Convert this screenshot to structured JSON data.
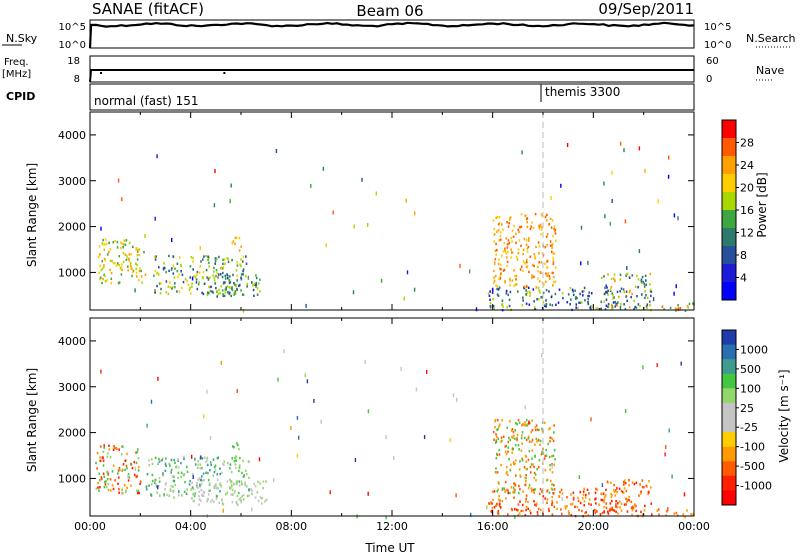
{
  "header": {
    "station": "SANAE (fitACF)",
    "beam": "Beam 06",
    "date": "09/Sep/2011"
  },
  "status_panels": {
    "nsky_label": "N.Sky",
    "nsearch_label": "N.Search",
    "nsky_ticks": [
      "10^5",
      "10^0"
    ],
    "nsearch_ticks": [
      "10^5",
      "10^0"
    ],
    "freq_label_1": "Freq.",
    "freq_label_2": "[MHz]",
    "freq_ticks": [
      "18",
      "8"
    ],
    "nave_label": "Nave",
    "nave_ticks": [
      "60",
      "0"
    ],
    "cpid_label": "CPID",
    "cpid_programs": [
      {
        "name": "normal (fast) 151",
        "start_hour": 0
      },
      {
        "name": "themis 3300",
        "start_hour": 18
      }
    ]
  },
  "chart_data": [
    {
      "type": "heatmap",
      "name": "power",
      "ylabel": "Slant Range [km]",
      "ylim": [
        180,
        4500
      ],
      "yticks": [
        1000,
        2000,
        3000,
        4000
      ],
      "xlim": [
        0,
        24
      ],
      "colorbar": {
        "label": "Power [dB]",
        "ticks": [
          "28",
          "24",
          "20",
          "16",
          "12",
          "8",
          "4"
        ],
        "colors": [
          "#ff0000",
          "#ff5a00",
          "#ffa000",
          "#ffcc00",
          "#a8d800",
          "#3fa73f",
          "#2d7a6c",
          "#264f9c",
          "#1b1bd8",
          "#0000ff"
        ]
      },
      "blobs": [
        {
          "t0": 0.3,
          "t1": 2.2,
          "r0": 750,
          "r1": 1750,
          "levels": [
            2,
            3,
            4,
            5
          ]
        },
        {
          "t0": 2.5,
          "t1": 6.2,
          "r0": 550,
          "r1": 1400,
          "levels": [
            3,
            4,
            5,
            6,
            7
          ]
        },
        {
          "t0": 4.5,
          "t1": 6.8,
          "r0": 500,
          "r1": 1000,
          "levels": [
            4,
            5,
            6,
            7
          ]
        },
        {
          "t0": 5.6,
          "t1": 6.1,
          "r0": 1500,
          "r1": 1800,
          "levels": [
            2,
            3
          ]
        },
        {
          "t0": 15.8,
          "t1": 21.0,
          "r0": 200,
          "r1": 700,
          "levels": [
            4,
            6,
            7,
            8
          ]
        },
        {
          "t0": 16.0,
          "t1": 18.5,
          "r0": 700,
          "r1": 2300,
          "levels": [
            1,
            2,
            3
          ]
        },
        {
          "t0": 20.3,
          "t1": 22.3,
          "r0": 200,
          "r1": 1000,
          "levels": [
            2,
            4,
            6,
            7
          ]
        },
        {
          "t0": 22.5,
          "t1": 24.0,
          "r0": 180,
          "r1": 350,
          "levels": [
            1,
            2,
            5
          ]
        }
      ]
    },
    {
      "type": "heatmap",
      "name": "velocity",
      "ylabel": "Slant Range [km]",
      "xlabel": "Time UT",
      "ylim": [
        180,
        4500
      ],
      "yticks": [
        1000,
        2000,
        3000,
        4000
      ],
      "xlim": [
        0,
        24
      ],
      "xticks": [
        "00:00",
        "04:00",
        "08:00",
        "12:00",
        "16:00",
        "20:00",
        "00:00"
      ],
      "colorbar": {
        "label": "Velocity [m s⁻¹]",
        "ticks": [
          "1000",
          "500",
          "100",
          "25",
          "-25",
          "-100",
          "-500",
          "-1000"
        ],
        "colors": [
          "#1e3ca8",
          "#2a6fb0",
          "#3f9a8f",
          "#45c640",
          "#93d66a",
          "#c4c4c4",
          "#c4c4c4",
          "#ffcc00",
          "#ff9a00",
          "#ff5a00",
          "#ff2000",
          "#ff0000"
        ]
      },
      "blobs": [
        {
          "t0": 0.2,
          "t1": 2.0,
          "r0": 700,
          "r1": 1750,
          "levels": [
            8,
            9,
            10,
            3,
            4
          ]
        },
        {
          "t0": 2.2,
          "t1": 6.3,
          "r0": 600,
          "r1": 1500,
          "levels": [
            2,
            3,
            4,
            5
          ]
        },
        {
          "t0": 4.0,
          "t1": 7.0,
          "r0": 450,
          "r1": 1000,
          "levels": [
            5,
            6,
            4
          ]
        },
        {
          "t0": 5.6,
          "t1": 6.1,
          "r0": 1500,
          "r1": 1800,
          "levels": [
            3,
            4
          ]
        },
        {
          "t0": 15.8,
          "t1": 21.0,
          "r0": 200,
          "r1": 800,
          "levels": [
            8,
            9,
            10
          ]
        },
        {
          "t0": 16.0,
          "t1": 18.5,
          "r0": 700,
          "r1": 2300,
          "levels": [
            8,
            9,
            3
          ]
        },
        {
          "t0": 20.3,
          "t1": 22.3,
          "r0": 200,
          "r1": 1000,
          "levels": [
            8,
            9,
            10
          ]
        },
        {
          "t0": 22.5,
          "t1": 24.0,
          "r0": 180,
          "r1": 350,
          "levels": [
            8,
            9
          ]
        }
      ]
    }
  ]
}
